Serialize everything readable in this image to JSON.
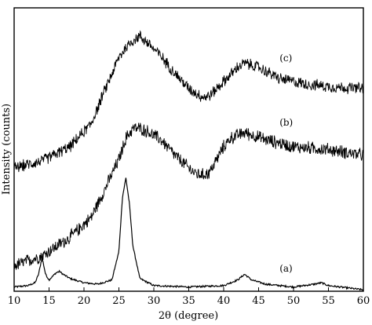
{
  "chart_data": {
    "type": "line",
    "xlabel": "2θ (degree)",
    "ylabel": "Intensity (counts)",
    "xlim": [
      10,
      60
    ],
    "x_ticks": [
      "10",
      "15",
      "20",
      "25",
      "30",
      "35",
      "40",
      "45",
      "50",
      "55",
      "60"
    ],
    "y_ticks_labeled": false,
    "grid": false,
    "series": [
      {
        "name": "(a)",
        "points": [
          [
            10,
            0.03
          ],
          [
            12,
            0.04
          ],
          [
            13,
            0.06
          ],
          [
            13.5,
            0.12
          ],
          [
            14,
            0.24
          ],
          [
            14.5,
            0.12
          ],
          [
            15,
            0.08
          ],
          [
            16,
            0.13
          ],
          [
            16.5,
            0.14
          ],
          [
            17,
            0.12
          ],
          [
            18,
            0.09
          ],
          [
            20,
            0.06
          ],
          [
            22,
            0.05
          ],
          [
            24,
            0.08
          ],
          [
            25,
            0.28
          ],
          [
            25.5,
            0.66
          ],
          [
            26,
            0.8
          ],
          [
            26.5,
            0.62
          ],
          [
            27,
            0.32
          ],
          [
            28,
            0.09
          ],
          [
            30,
            0.04
          ],
          [
            35,
            0.03
          ],
          [
            40,
            0.04
          ],
          [
            42,
            0.08
          ],
          [
            43,
            0.12
          ],
          [
            44,
            0.08
          ],
          [
            46,
            0.05
          ],
          [
            50,
            0.03
          ],
          [
            53,
            0.05
          ],
          [
            54,
            0.06
          ],
          [
            55,
            0.04
          ],
          [
            60,
            0.01
          ]
        ]
      },
      {
        "name": "(b)",
        "points": [
          [
            10,
            0.18
          ],
          [
            14,
            0.25
          ],
          [
            18,
            0.38
          ],
          [
            21,
            0.52
          ],
          [
            23,
            0.72
          ],
          [
            25,
            0.93
          ],
          [
            26,
            1.08
          ],
          [
            27,
            1.15
          ],
          [
            28,
            1.15
          ],
          [
            29,
            1.13
          ],
          [
            31,
            1.07
          ],
          [
            33,
            0.96
          ],
          [
            35,
            0.87
          ],
          [
            36,
            0.83
          ],
          [
            37,
            0.82
          ],
          [
            38,
            0.84
          ],
          [
            39,
            0.93
          ],
          [
            40,
            1.02
          ],
          [
            41,
            1.08
          ],
          [
            43,
            1.12
          ],
          [
            46,
            1.07
          ],
          [
            50,
            1.02
          ],
          [
            55,
            1.0
          ],
          [
            60,
            0.96
          ]
        ]
      },
      {
        "name": "(c)",
        "points": [
          [
            10,
            0.87
          ],
          [
            14,
            0.92
          ],
          [
            18,
            1.02
          ],
          [
            21,
            1.18
          ],
          [
            23,
            1.42
          ],
          [
            25,
            1.65
          ],
          [
            26,
            1.72
          ],
          [
            27,
            1.77
          ],
          [
            28,
            1.8
          ],
          [
            29,
            1.76
          ],
          [
            31,
            1.66
          ],
          [
            33,
            1.54
          ],
          [
            35,
            1.43
          ],
          [
            37,
            1.37
          ],
          [
            38,
            1.38
          ],
          [
            40,
            1.48
          ],
          [
            42,
            1.58
          ],
          [
            43,
            1.61
          ],
          [
            45,
            1.58
          ],
          [
            48,
            1.5
          ],
          [
            52,
            1.46
          ],
          [
            56,
            1.44
          ],
          [
            60,
            1.43
          ]
        ]
      }
    ]
  }
}
